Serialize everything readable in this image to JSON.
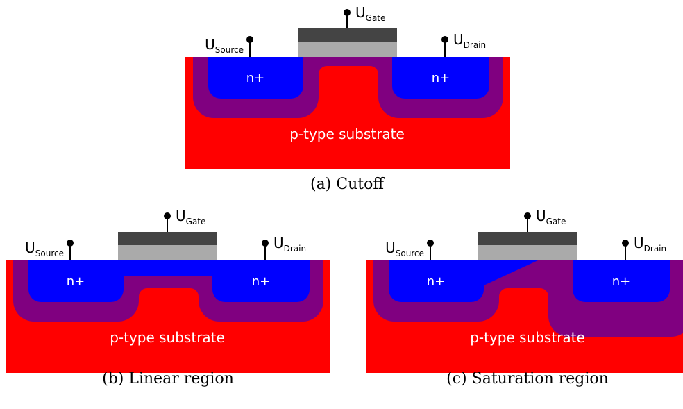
{
  "panels": [
    {
      "caption": "(a) Cutoff",
      "source": {
        "symbol": "U",
        "subscript": "Source"
      },
      "gate": {
        "symbol": "U",
        "subscript": "Gate"
      },
      "drain": {
        "symbol": "U",
        "subscript": "Drain"
      },
      "source_region": "n+",
      "drain_region": "n+",
      "substrate": "p-type substrate"
    },
    {
      "caption": "(b) Linear region",
      "source": {
        "symbol": "U",
        "subscript": "Source"
      },
      "gate": {
        "symbol": "U",
        "subscript": "Gate"
      },
      "drain": {
        "symbol": "U",
        "subscript": "Drain"
      },
      "source_region": "n+",
      "drain_region": "n+",
      "substrate": "p-type substrate"
    },
    {
      "caption": "(c) Saturation region",
      "source": {
        "symbol": "U",
        "subscript": "Source"
      },
      "gate": {
        "symbol": "U",
        "subscript": "Gate"
      },
      "drain": {
        "symbol": "U",
        "subscript": "Drain"
      },
      "source_region": "n+",
      "drain_region": "n+",
      "substrate": "p-type substrate"
    }
  ]
}
